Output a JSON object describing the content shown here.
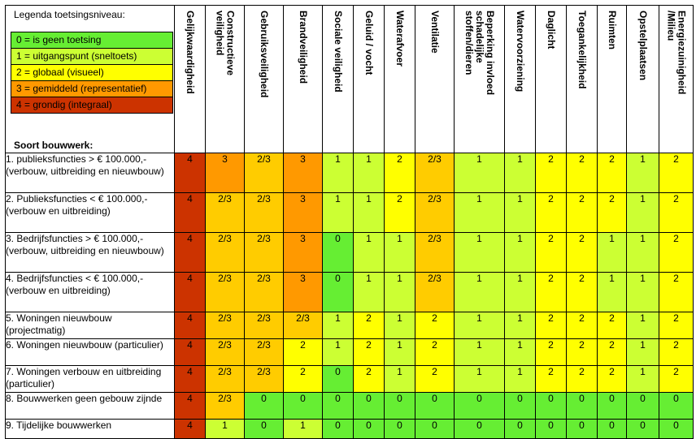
{
  "legend": {
    "title": "Legenda toetsingsniveau:",
    "items": [
      {
        "label": "0 = is geen toetsing",
        "color": "#66ee33"
      },
      {
        "label": "1 = uitgangspunt (sneltoets)",
        "color": "#ccff33"
      },
      {
        "label": "2 = globaal (visueel)",
        "color": "#ffff00"
      },
      {
        "label": "3 = gemiddeld (representatief)",
        "color": "#ff9900"
      },
      {
        "label": "4 = grondig (integraal)",
        "color": "#cc3300"
      }
    ],
    "soort_label": "Soort bouwwerk:"
  },
  "columns": [
    "Gelijkwaardigheid",
    "Constructieve\nveiligheid",
    "Gebruiksveiligheid",
    "Brandveiligheid",
    "Sociale veiligheid",
    "Geluid / vocht",
    "Waterafvoer",
    "Ventilatie",
    "Beperking invloed\nschadelijke\nstoffen/dieren",
    "Watervoorziening",
    "Daglicht",
    "Toegankelijkheid",
    "Ruimten",
    "Opstelplaatsen",
    "Energiezuinigheid\n/Milieu"
  ],
  "rows": [
    {
      "label": "1. publieksfuncties > € 100.000,- (verbouw, uitbreiding en nieuwbouw)",
      "values": [
        "4",
        "3",
        "2/3",
        "3",
        "1",
        "1",
        "2",
        "2/3",
        "1",
        "1",
        "2",
        "2",
        "2",
        "1",
        "2"
      ]
    },
    {
      "label": "2. Publieksfuncties < € 100.000,- (verbouw en uitbreiding)",
      "values": [
        "4",
        "2/3",
        "2/3",
        "3",
        "1",
        "1",
        "2",
        "2/3",
        "1",
        "1",
        "2",
        "2",
        "2",
        "1",
        "2"
      ]
    },
    {
      "label": "3. Bedrijfsfuncties > € 100.000,- (verbouw, uitbreiding en nieuwbouw)",
      "values": [
        "4",
        "2/3",
        "2/3",
        "3",
        "0",
        "1",
        "1",
        "2/3",
        "1",
        "1",
        "2",
        "2",
        "1",
        "1",
        "2"
      ]
    },
    {
      "label": "4. Bedrijfsfuncties < € 100.000,- (verbouw en uitbreiding)",
      "values": [
        "4",
        "2/3",
        "2/3",
        "3",
        "0",
        "1",
        "1",
        "2/3",
        "1",
        "1",
        "2",
        "2",
        "1",
        "1",
        "2"
      ]
    },
    {
      "label": "5. Woningen nieuwbouw (projectmatig)",
      "values": [
        "4",
        "2/3",
        "2/3",
        "2/3",
        "1",
        "2",
        "1",
        "2",
        "1",
        "1",
        "2",
        "2",
        "2",
        "1",
        "2"
      ]
    },
    {
      "label": "6. Woningen nieuwbouw (particulier)",
      "values": [
        "4",
        "2/3",
        "2/3",
        "2",
        "1",
        "2",
        "1",
        "2",
        "1",
        "1",
        "2",
        "2",
        "2",
        "1",
        "2"
      ]
    },
    {
      "label": "7. Woningen verbouw en uitbreiding (particulier)",
      "values": [
        "4",
        "2/3",
        "2/3",
        "2",
        "0",
        "2",
        "1",
        "2",
        "1",
        "1",
        "2",
        "2",
        "2",
        "1",
        "2"
      ]
    },
    {
      "label": "8. Bouwwerken geen gebouw zijnde",
      "values": [
        "4",
        "2/3",
        "0",
        "0",
        "0",
        "0",
        "0",
        "0",
        "0",
        "0",
        "0",
        "0",
        "0",
        "0",
        "0"
      ]
    },
    {
      "label": "9. Tijdelijke bouwwerken",
      "values": [
        "4",
        "1",
        "0",
        "1",
        "0",
        "0",
        "0",
        "0",
        "0",
        "0",
        "0",
        "0",
        "0",
        "0",
        "0"
      ]
    }
  ],
  "value_colors": {
    "0": "#66ee33",
    "1": "#ccff33",
    "2": "#ffff00",
    "2/3": "#ffcc00",
    "3": "#ff9900",
    "4": "#cc3300"
  }
}
